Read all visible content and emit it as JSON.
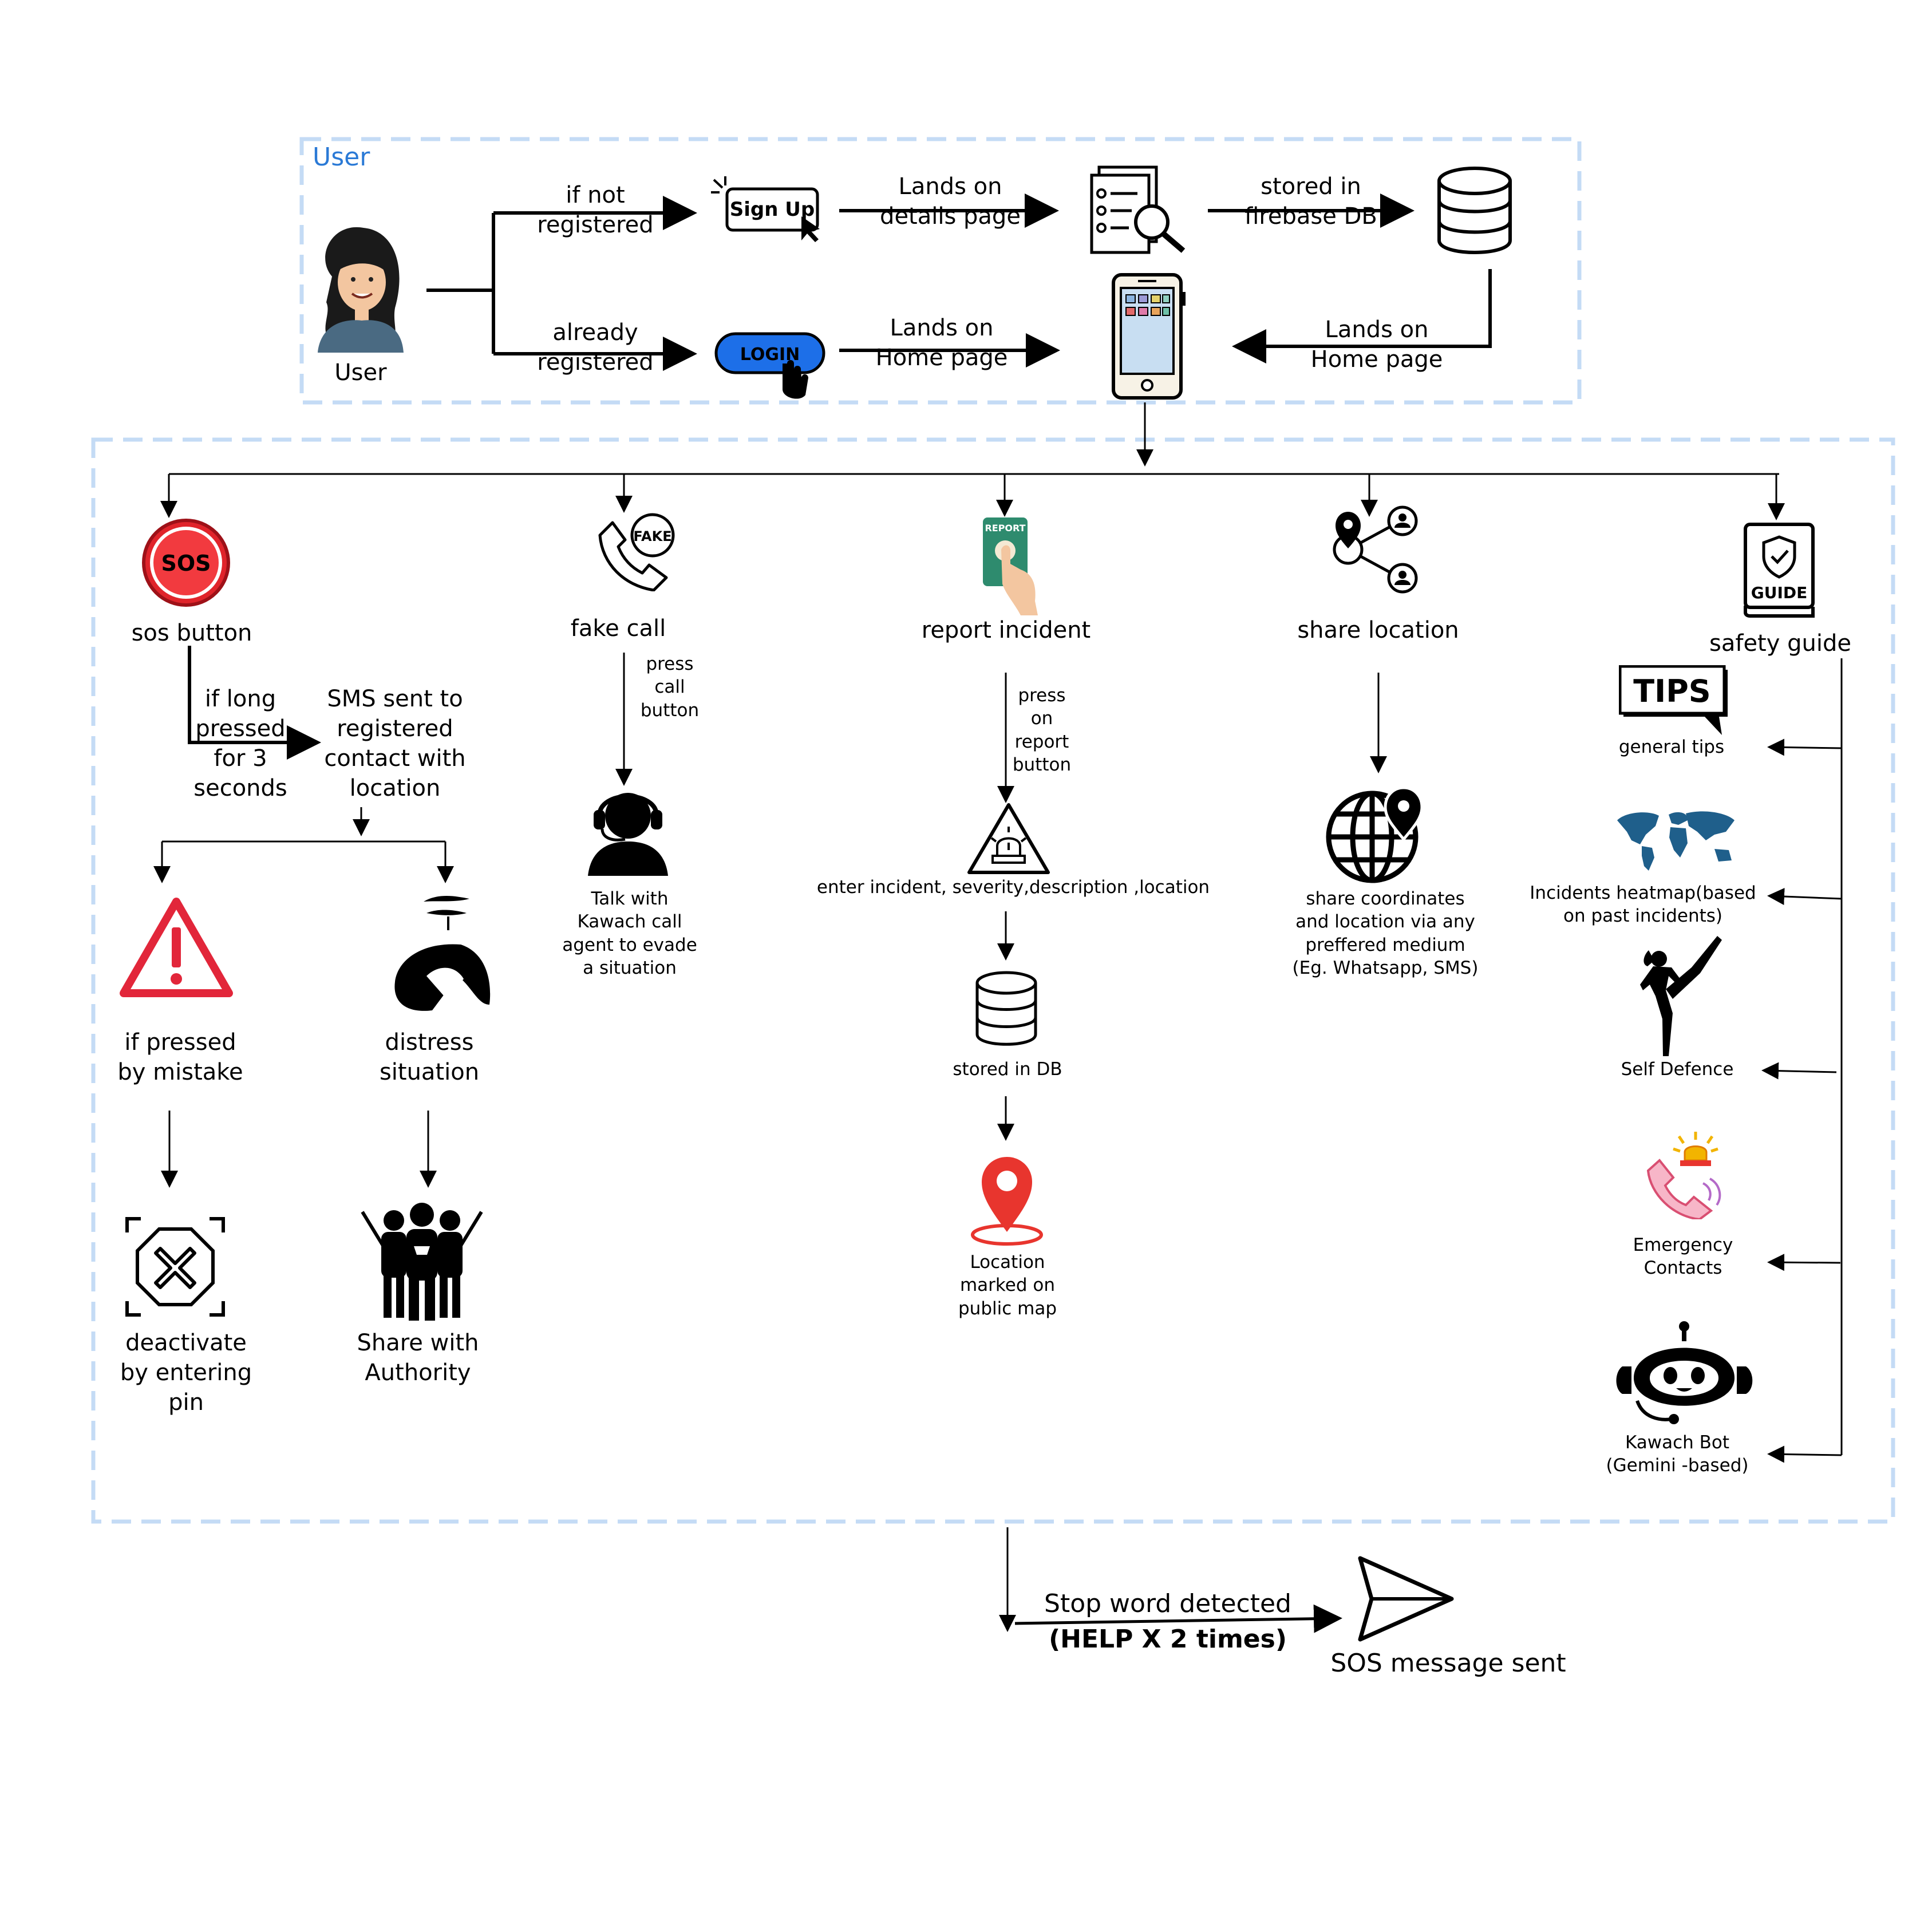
{
  "user_panel": {
    "title": "User",
    "avatar_label": "User",
    "edge_not_registered": "if not\nregistered",
    "edge_already_registered": "already\nregistered",
    "signup_text": "Sign Up",
    "login_text": "LOGIN",
    "edge_details_page": "Lands on\ndetails page",
    "edge_stored_firebase": "stored in\nfirebase DB",
    "edge_home_from_login": "Lands on\nHome page",
    "edge_home_from_db": "Lands on\nHome page"
  },
  "features": {
    "sos": {
      "title": "sos button",
      "icon_text": "SOS",
      "long_press": "if long\npressed\nfor 3\nseconds",
      "sms": "SMS sent to\nregistered\ncontact with\nlocation",
      "mistake": "if pressed\nby mistake",
      "distress": "distress\nsituation",
      "deactivate": "deactivate\nby entering\npin",
      "authority": "Share with\nAuthority"
    },
    "fake_call": {
      "title": "fake call",
      "icon_text": "FAKE",
      "press": "press\ncall\nbutton",
      "talk": "Talk with\nKawach call\nagent to evade\na situation"
    },
    "report": {
      "title": "report incident",
      "icon_text": "REPORT",
      "press": "press\non\nreport\nbutton",
      "enter": "enter incident, severity,description ,location",
      "stored": "stored in DB",
      "marked": "Location\nmarked on\npublic map"
    },
    "share": {
      "title": "share location",
      "desc": "share coordinates\nand location via any\npreffered medium\n(Eg. Whatsapp, SMS)"
    },
    "guide": {
      "title": "safety guide",
      "icon_text": "GUIDE",
      "items": [
        {
          "label": "general tips",
          "icon_text": "TIPS"
        },
        {
          "label": "Incidents heatmap(based\non past incidents)"
        },
        {
          "label": "Self Defence"
        },
        {
          "label": "Emergency\nContacts"
        },
        {
          "label": "Kawach Bot\n(Gemini -based)"
        }
      ]
    }
  },
  "stop_word": {
    "line1": "Stop word detected",
    "line2": "(HELP X 2 times)",
    "result": "SOS message sent"
  },
  "colors": {
    "panel_border": "#c4dbf5",
    "user_title": "#2b7ad6",
    "login_blue": "#1d6fe8",
    "sos_red": "#e0242b",
    "warning_red": "#e2263a",
    "map_blue": "#1f5f8b",
    "report_green": "#2e8b6e",
    "pin_red": "#e8352e"
  }
}
